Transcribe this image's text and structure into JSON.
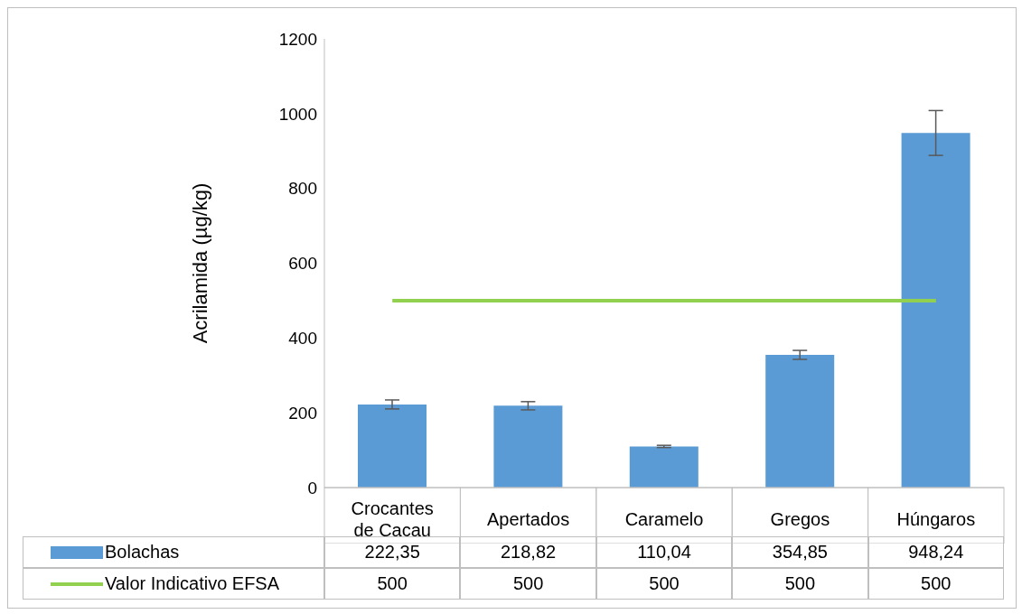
{
  "chart_data": {
    "type": "bar",
    "ylabel": "Acrilamida (µg/kg)",
    "categories": [
      "Crocantes de Cacau",
      "Apertados",
      "Caramelo",
      "Gregos",
      "Húngaros"
    ],
    "series": [
      {
        "name": "Bolachas",
        "color": "#5b9bd5",
        "values": [
          222.35,
          218.82,
          110.04,
          354.85,
          948.24
        ],
        "errors": [
          12,
          11,
          3,
          12,
          60
        ],
        "value_labels": [
          "222,35",
          "218,82",
          "110,04",
          "354,85",
          "948,24"
        ]
      },
      {
        "name": "Valor Indicativo EFSA",
        "type": "line",
        "color": "#92d050",
        "values": [
          500,
          500,
          500,
          500,
          500
        ],
        "value_labels": [
          "500",
          "500",
          "500",
          "500",
          "500"
        ]
      }
    ],
    "ylim": [
      0,
      1200
    ],
    "yticks": [
      0,
      200,
      400,
      600,
      800,
      1000,
      1200
    ],
    "legend": "bottom left",
    "marker": "none"
  }
}
